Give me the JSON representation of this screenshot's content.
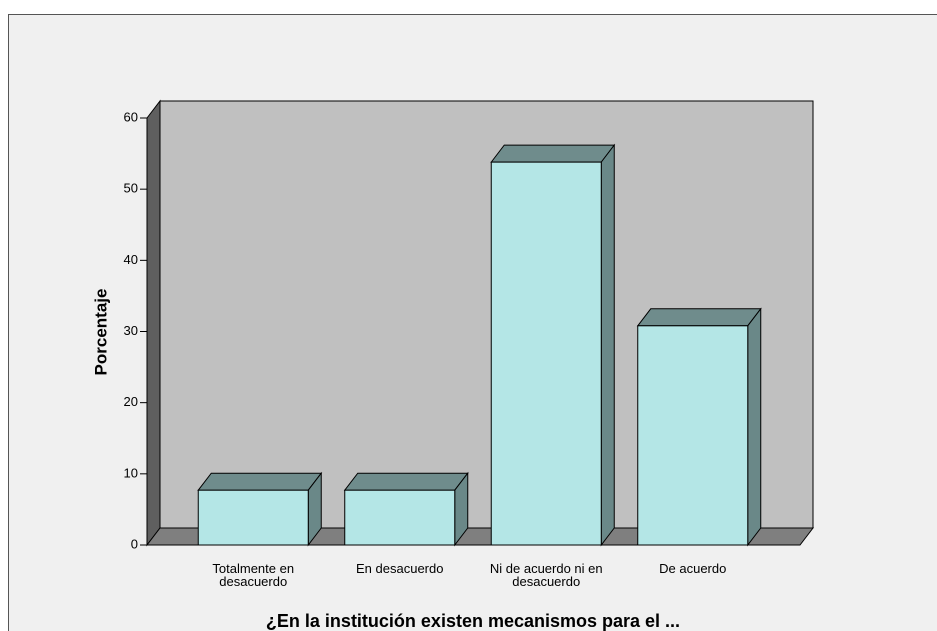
{
  "chart_data": {
    "type": "bar3d",
    "categories": [
      "Totalmente en desacuerdo",
      "En desacuerdo",
      "Ni de acuerdo ni en desacuerdo",
      "De acuerdo"
    ],
    "values": [
      7.7,
      7.7,
      53.8,
      30.8
    ],
    "color": "#b4e6e6",
    "ylim": [
      0,
      60
    ],
    "yticks": [
      0,
      10,
      20,
      30,
      40,
      50,
      60
    ],
    "ylabel": "Porcentaje",
    "xlabel": "¿En la institución existen mecanismos para el ..."
  }
}
